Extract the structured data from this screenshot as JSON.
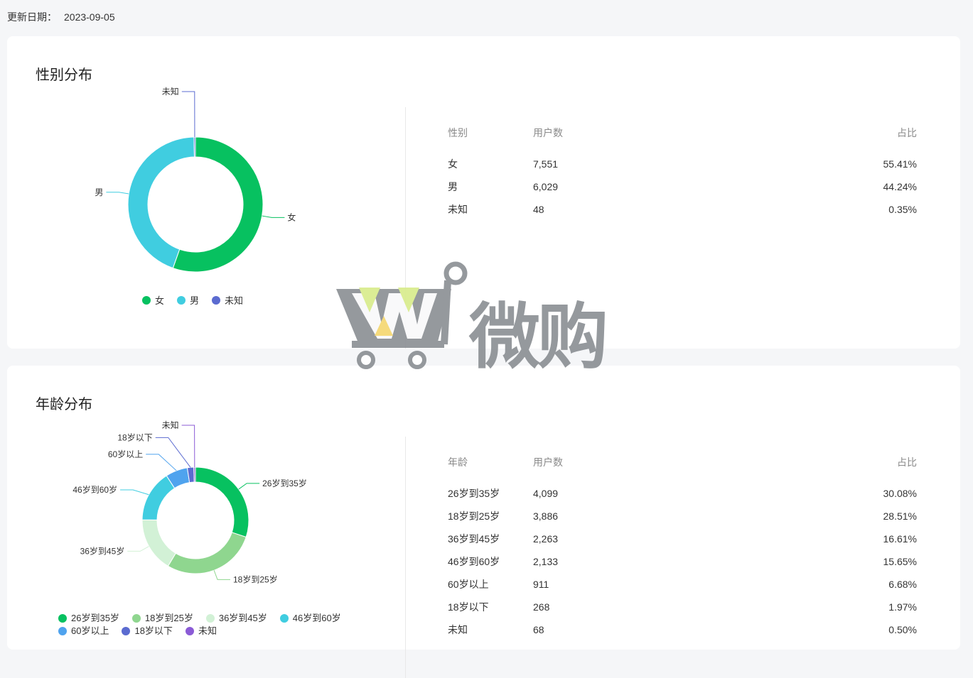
{
  "update": {
    "label": "更新日期：",
    "date": "2023-09-05"
  },
  "gender": {
    "title": "性别分布",
    "table_head": {
      "col1": "性别",
      "col2": "用户数",
      "col3": "占比"
    },
    "rows": [
      {
        "name": "女",
        "users": "7,551",
        "pct": "55.41%"
      },
      {
        "name": "男",
        "users": "6,029",
        "pct": "44.24%"
      },
      {
        "name": "未知",
        "users": "48",
        "pct": "0.35%"
      }
    ],
    "legend": [
      "女",
      "男",
      "未知"
    ]
  },
  "age": {
    "title": "年龄分布",
    "table_head": {
      "col1": "年龄",
      "col2": "用户数",
      "col3": "占比"
    },
    "rows": [
      {
        "name": "26岁到35岁",
        "users": "4,099",
        "pct": "30.08%"
      },
      {
        "name": "18岁到25岁",
        "users": "3,886",
        "pct": "28.51%"
      },
      {
        "name": "36岁到45岁",
        "users": "2,263",
        "pct": "16.61%"
      },
      {
        "name": "46岁到60岁",
        "users": "2,133",
        "pct": "15.65%"
      },
      {
        "name": "60岁以上",
        "users": "911",
        "pct": "6.68%"
      },
      {
        "name": "18岁以下",
        "users": "268",
        "pct": "1.97%"
      },
      {
        "name": "未知",
        "users": "68",
        "pct": "0.50%"
      }
    ],
    "legend": [
      "26岁到35岁",
      "18岁到25岁",
      "36岁到45岁",
      "46岁到60岁",
      "60岁以上",
      "18岁以下",
      "未知"
    ]
  },
  "chart_data": [
    {
      "type": "pie",
      "categories": [
        "女",
        "男",
        "未知"
      ],
      "values": [
        7551,
        6029,
        48
      ],
      "colors": [
        "#07c160",
        "#40cde0",
        "#5b6bd0"
      ]
    },
    {
      "type": "pie",
      "categories": [
        "26岁到35岁",
        "18岁到25岁",
        "36岁到45岁",
        "46岁到60岁",
        "60岁以上",
        "18岁以下",
        "未知"
      ],
      "values": [
        4099,
        3886,
        2263,
        2133,
        911,
        268,
        68
      ],
      "colors": [
        "#07c160",
        "#8fd68f",
        "#d2f1d6",
        "#40cde0",
        "#4fa3ee",
        "#5b6bd0",
        "#8b5bd6"
      ]
    }
  ],
  "watermark": {
    "text": "微购",
    "icon": "cart-w-logo"
  }
}
